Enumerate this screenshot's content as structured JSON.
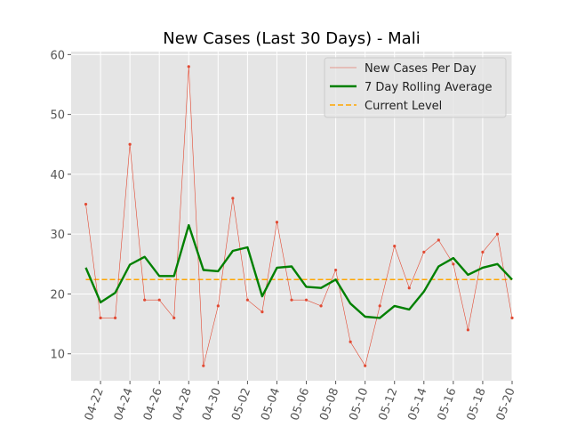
{
  "chart_data": {
    "type": "line",
    "title": "New Cases (Last 30 Days) - Mali",
    "xlabel": "",
    "ylabel": "",
    "x": [
      "2020-04-21",
      "2020-04-22",
      "2020-04-23",
      "2020-04-24",
      "2020-04-25",
      "2020-04-26",
      "2020-04-27",
      "2020-04-28",
      "2020-04-29",
      "2020-04-30",
      "2020-05-01",
      "2020-05-02",
      "2020-05-03",
      "2020-05-04",
      "2020-05-05",
      "2020-05-06",
      "2020-05-07",
      "2020-05-08",
      "2020-05-09",
      "2020-05-10",
      "2020-05-11",
      "2020-05-12",
      "2020-05-13",
      "2020-05-14",
      "2020-05-15",
      "2020-05-16",
      "2020-05-17",
      "2020-05-18",
      "2020-05-19",
      "2020-05-20"
    ],
    "xlim": [
      "2020-04-20",
      "2020-05-20"
    ],
    "x_ticks": [
      "04-22",
      "04-24",
      "04-26",
      "04-28",
      "04-30",
      "05-02",
      "05-04",
      "05-06",
      "05-08",
      "05-10",
      "05-12",
      "05-14",
      "05-16",
      "05-18",
      "05-20"
    ],
    "ylim": [
      5.5,
      60.5
    ],
    "y_ticks": [
      10,
      20,
      30,
      40,
      50,
      60
    ],
    "grid": true,
    "legend_position": "top-right",
    "series": [
      {
        "name": "New Cases Per Day",
        "color": "#e24a33",
        "style": "thin-line-with-markers",
        "values": [
          35,
          16,
          16,
          45,
          19,
          19,
          16,
          58,
          8,
          18,
          36,
          19,
          17,
          32,
          19,
          19,
          18,
          24,
          12,
          8,
          18,
          28,
          21,
          27,
          29,
          25,
          14,
          27,
          30,
          16
        ]
      },
      {
        "name": "7 Day Rolling Average",
        "color": "#008000",
        "style": "thick-line",
        "values": [
          24.4,
          18.6,
          20.2,
          24.9,
          26.2,
          23.0,
          23.0,
          31.5,
          24.0,
          23.8,
          27.2,
          27.8,
          19.6,
          24.4,
          24.6,
          21.2,
          21.0,
          22.4,
          18.4,
          16.2,
          16.0,
          18.0,
          17.4,
          20.4,
          24.6,
          26.0,
          23.2,
          24.4,
          25.0,
          22.4
        ]
      },
      {
        "name": "Current Level",
        "color": "#ffa500",
        "style": "dashed-line",
        "values": [
          22.4,
          22.4,
          22.4,
          22.4,
          22.4,
          22.4,
          22.4,
          22.4,
          22.4,
          22.4,
          22.4,
          22.4,
          22.4,
          22.4,
          22.4,
          22.4,
          22.4,
          22.4,
          22.4,
          22.4,
          22.4,
          22.4,
          22.4,
          22.4,
          22.4,
          22.4,
          22.4,
          22.4,
          22.4,
          22.4
        ]
      }
    ]
  }
}
